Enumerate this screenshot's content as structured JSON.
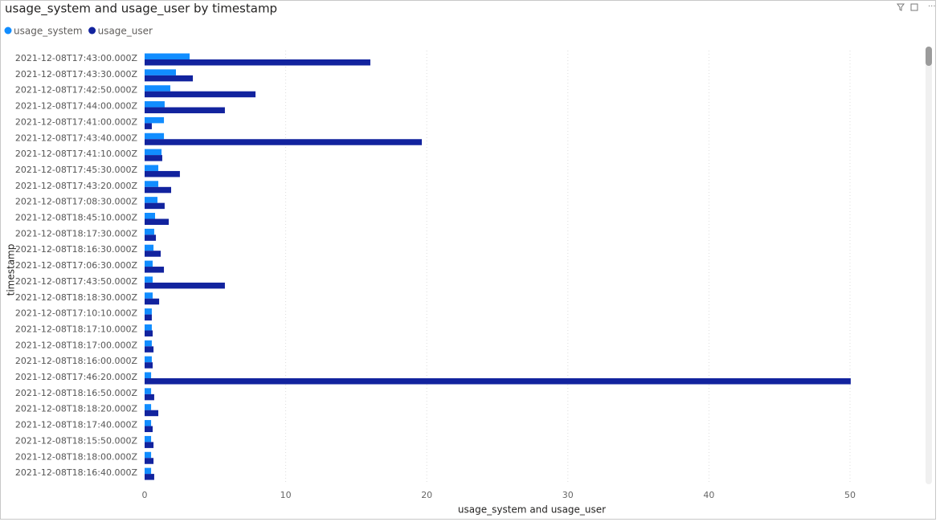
{
  "chart_data": {
    "type": "hbar",
    "title": "usage_system and usage_user by timestamp",
    "x_label": "usage_system and usage_user",
    "y_label": "timestamp",
    "categories": [
      "2021-12-08T17:43:00.000Z",
      "2021-12-08T17:43:30.000Z",
      "2021-12-08T17:42:50.000Z",
      "2021-12-08T17:44:00.000Z",
      "2021-12-08T17:41:00.000Z",
      "2021-12-08T17:43:40.000Z",
      "2021-12-08T17:41:10.000Z",
      "2021-12-08T17:45:30.000Z",
      "2021-12-08T17:43:20.000Z",
      "2021-12-08T17:08:30.000Z",
      "2021-12-08T18:45:10.000Z",
      "2021-12-08T18:17:30.000Z",
      "2021-12-08T18:16:30.000Z",
      "2021-12-08T17:06:30.000Z",
      "2021-12-08T17:43:50.000Z",
      "2021-12-08T18:18:30.000Z",
      "2021-12-08T17:10:10.000Z",
      "2021-12-08T18:17:10.000Z",
      "2021-12-08T18:17:00.000Z",
      "2021-12-08T18:16:00.000Z",
      "2021-12-08T17:46:20.000Z",
      "2021-12-08T18:16:50.000Z",
      "2021-12-08T18:18:20.000Z",
      "2021-12-08T18:17:40.000Z",
      "2021-12-08T18:15:50.000Z",
      "2021-12-08T18:18:00.000Z",
      "2021-12-08T18:16:40.000Z"
    ],
    "series": [
      {
        "name": "usage_system",
        "color": "#118dff",
        "values": [
          3.19,
          2.22,
          1.82,
          1.42,
          1.37,
          1.37,
          1.2,
          0.97,
          0.97,
          0.91,
          0.74,
          0.68,
          0.63,
          0.57,
          0.57,
          0.57,
          0.51,
          0.51,
          0.51,
          0.51,
          0.46,
          0.46,
          0.46,
          0.46,
          0.46,
          0.46,
          0.46
        ]
      },
      {
        "name": "usage_user",
        "color": "#12239e",
        "values": [
          16.0,
          3.42,
          7.86,
          5.69,
          0.51,
          19.65,
          1.25,
          2.5,
          1.88,
          1.42,
          1.71,
          0.8,
          1.14,
          1.37,
          5.69,
          1.03,
          0.51,
          0.57,
          0.63,
          0.57,
          50.05,
          0.68,
          0.97,
          0.57,
          0.63,
          0.63,
          0.68
        ]
      }
    ],
    "xlim": [
      0,
      54.7
    ],
    "xticks": [
      0,
      10,
      20,
      30,
      40,
      50
    ],
    "grid": true
  }
}
